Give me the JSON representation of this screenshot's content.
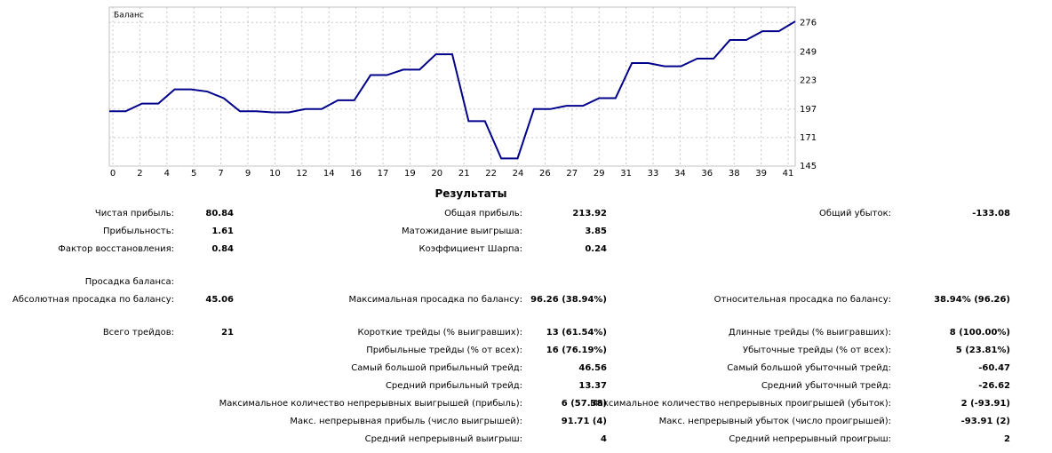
{
  "chart_data": {
    "type": "line",
    "title": "Баланс",
    "x_labels": [
      "0",
      "2",
      "4",
      "5",
      "7",
      "9",
      "10",
      "12",
      "14",
      "16",
      "17",
      "19",
      "20",
      "21",
      "22",
      "24",
      "26",
      "27",
      "29",
      "31",
      "33",
      "34",
      "36",
      "38",
      "39",
      "41"
    ],
    "series": [
      {
        "name": "Баланс",
        "color": "#00008b",
        "values": [
          195,
          195,
          202,
          202,
          215,
          215,
          213,
          207,
          195,
          195,
          194,
          194,
          197,
          197,
          205,
          205,
          228,
          228,
          233,
          233,
          247,
          247,
          186,
          186,
          152,
          152,
          197,
          197,
          200,
          200,
          207,
          207,
          239,
          239,
          236,
          236,
          243,
          243,
          260,
          260,
          268,
          268,
          277
        ]
      }
    ],
    "ylim": [
      145,
      290
    ],
    "yticks": [
      145,
      171,
      197,
      223,
      249,
      276
    ],
    "grid": true
  },
  "results": {
    "title": "Результаты",
    "sections": [
      [
        [
          {
            "label": "Чистая прибыль:",
            "value": "80.84"
          },
          {
            "label": "Общая прибыль:",
            "value": "213.92"
          },
          {
            "label": "Общий убыток:",
            "value": "-133.08"
          }
        ],
        [
          {
            "label": "Прибыльность:",
            "value": "1.61"
          },
          {
            "label": "Матожидание выигрыша:",
            "value": "3.85"
          },
          null
        ],
        [
          {
            "label": "Фактор восстановления:",
            "value": "0.84"
          },
          {
            "label": "Коэффициент Шарпа:",
            "value": "0.24"
          },
          null
        ]
      ],
      [
        [
          {
            "label": "Просадка баланса:"
          },
          null,
          null
        ],
        [
          {
            "label": "Абсолютная просадка по балансу:",
            "value": "45.06"
          },
          {
            "label": "Максимальная просадка по балансу:",
            "value": "96.26 (38.94%)"
          },
          {
            "label": "Относительная просадка по балансу:",
            "value": "38.94% (96.26)"
          }
        ]
      ],
      [
        [
          {
            "label": "Всего трейдов:",
            "value": "21"
          },
          {
            "label": "Короткие трейды (% выигравших):",
            "value": "13 (61.54%)"
          },
          {
            "label": "Длинные трейды (% выигравших):",
            "value": "8 (100.00%)"
          }
        ],
        [
          null,
          {
            "label": "Прибыльные трейды (% от всех):",
            "value": "16 (76.19%)"
          },
          {
            "label": "Убыточные трейды (% от всех):",
            "value": "5 (23.81%)"
          }
        ],
        [
          null,
          {
            "label": "Самый большой прибыльный трейд:",
            "value": "46.56"
          },
          {
            "label": "Самый большой убыточный трейд:",
            "value": "-60.47"
          }
        ],
        [
          null,
          {
            "label": "Средний прибыльный трейд:",
            "value": "13.37"
          },
          {
            "label": "Средний убыточный трейд:",
            "value": "-26.62"
          }
        ],
        [
          null,
          {
            "label": "Максимальное количество непрерывных выигрышей (прибыль):",
            "value": "6 (57.38)"
          },
          {
            "label": "Максимальное количество непрерывных проигрышей (убыток):",
            "value": "2 (-93.91)"
          }
        ],
        [
          null,
          {
            "label": "Макс. непрерывная прибыль (число выигрышей):",
            "value": "91.71 (4)"
          },
          {
            "label": "Макс. непрерывный убыток (число проигрышей):",
            "value": "-93.91 (2)"
          }
        ],
        [
          null,
          {
            "label": "Средний непрерывный выигрыш:",
            "value": "4"
          },
          {
            "label": "Средний непрерывный проигрыш:",
            "value": "2"
          }
        ]
      ]
    ]
  }
}
